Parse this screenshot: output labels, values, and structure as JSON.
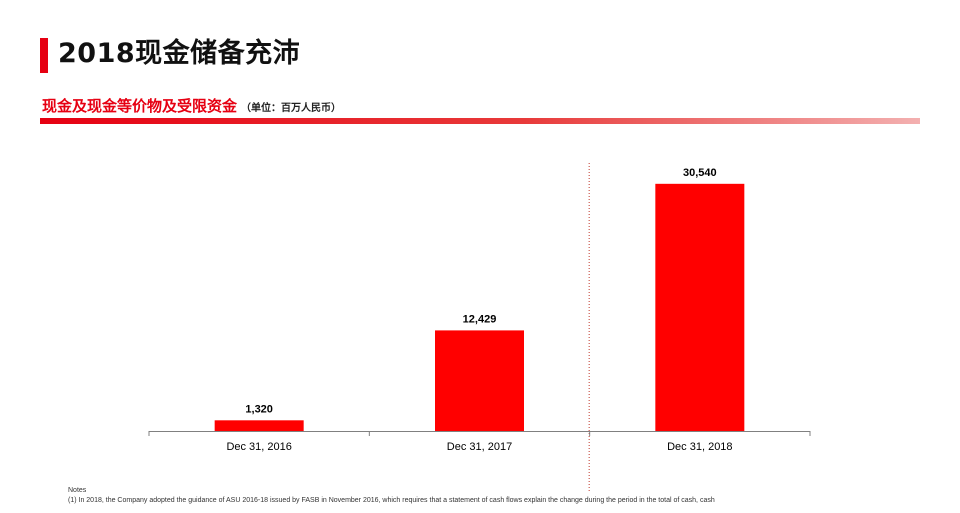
{
  "header": {
    "title": "2018现金储备充沛",
    "subtitle": "现金及现金等价物及受限资金",
    "unit": "（单位：百万人民币）"
  },
  "colors": {
    "accent": "#e60012",
    "bar": "#ff0000"
  },
  "chart_data": {
    "type": "bar",
    "title": "",
    "xlabel": "",
    "ylabel": "",
    "categories": [
      "Dec 31, 2016",
      "Dec 31, 2017",
      "Dec 31, 2018"
    ],
    "values": [
      1320,
      12429,
      30540
    ],
    "value_labels": [
      "1,320",
      "12,429",
      "30,540"
    ],
    "ylim": [
      0,
      32000
    ],
    "grid": false,
    "legend": "none",
    "divider_after_category": 2
  },
  "notes": {
    "heading": "Notes",
    "line1": "(1) In 2018, the Company adopted the guidance of ASU 2016-18 issued by FASB in November 2016, which requires that a statement of cash flows explain the change during the period in the total of cash, cash"
  }
}
